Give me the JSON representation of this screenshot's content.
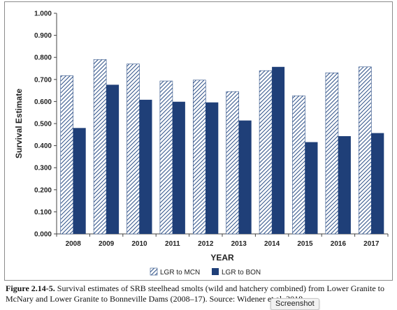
{
  "chart_data": {
    "type": "bar",
    "ylabel": "Survival Estimate",
    "xlabel": "YEAR",
    "ylim": [
      0,
      1.0
    ],
    "ytick_step": 0.1,
    "ytick_labels": [
      "0.000",
      "0.100",
      "0.200",
      "0.300",
      "0.400",
      "0.500",
      "0.600",
      "0.700",
      "0.800",
      "0.900",
      "1.000"
    ],
    "categories": [
      "2008",
      "2009",
      "2010",
      "2011",
      "2012",
      "2013",
      "2014",
      "2015",
      "2016",
      "2017"
    ],
    "series": [
      {
        "name": "LGR to MCN",
        "pattern": "diagonal-hatch",
        "color": "#2b4e86",
        "values": [
          0.717,
          0.79,
          0.77,
          0.693,
          0.697,
          0.645,
          0.74,
          0.626,
          0.73,
          0.757
        ]
      },
      {
        "name": "LGR to BON",
        "pattern": "solid",
        "color": "#1f3f78",
        "values": [
          0.48,
          0.676,
          0.608,
          0.599,
          0.596,
          0.514,
          0.757,
          0.416,
          0.443,
          0.457
        ]
      }
    ],
    "grid": false,
    "legend_position": "bottom-center"
  },
  "caption": {
    "label": "Figure 2.14-5.",
    "text": " Survival estimates of SRB steelhead smolts (wild and hatchery combined) from Lower Granite to McNary and Lower Granite to Bonneville Dams (2008–17). Source: Widener et al. 2018."
  },
  "tooltip": {
    "text": "Screenshot"
  }
}
